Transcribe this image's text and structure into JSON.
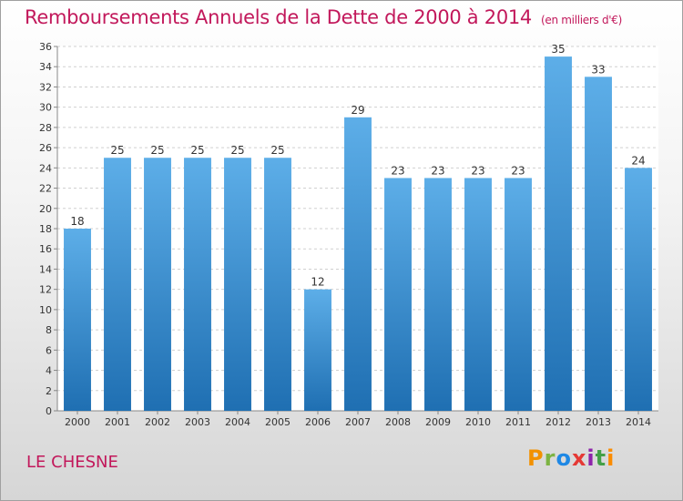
{
  "header": {
    "title": "Remboursements Annuels de la Dette de 2000 à 2014",
    "unit": "(en milliers d'€)"
  },
  "footer": {
    "place": "LE CHESNE",
    "logo": [
      "P",
      "r",
      "o",
      "x",
      "i",
      "t",
      "i"
    ],
    "logo_colors": [
      "#f29100",
      "#7cb342",
      "#1e88e5",
      "#e53935",
      "#8e24aa",
      "#43a047",
      "#fb8c00"
    ]
  },
  "colors": {
    "bar_light": "#5daee8",
    "bar_dark": "#1f6fb2",
    "title": "#c2185b"
  },
  "chart_data": {
    "type": "bar",
    "categories": [
      "2000",
      "2001",
      "2002",
      "2003",
      "2004",
      "2005",
      "2006",
      "2007",
      "2008",
      "2009",
      "2010",
      "2011",
      "2012",
      "2013",
      "2014"
    ],
    "values": [
      18,
      25,
      25,
      25,
      25,
      25,
      12,
      29,
      23,
      23,
      23,
      23,
      35,
      33,
      24
    ],
    "y_ticks": [
      0,
      2,
      4,
      6,
      8,
      10,
      12,
      14,
      16,
      18,
      20,
      22,
      24,
      26,
      28,
      30,
      32,
      34,
      36
    ],
    "title": "Remboursements Annuels de la Dette de 2000 à 2014",
    "xlabel": "",
    "ylabel": "",
    "ylim": [
      0,
      36
    ],
    "grid": true,
    "legend": "none"
  }
}
